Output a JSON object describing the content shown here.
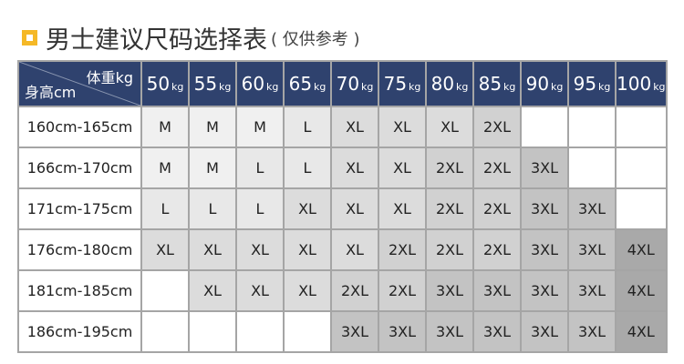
{
  "title": {
    "main": "男士建议尺码选择表",
    "note": "( 仅供参考 )"
  },
  "header": {
    "weight_label": "体重kg",
    "height_label": "身高cm",
    "weights": [
      {
        "n": "50",
        "u": "kg"
      },
      {
        "n": "55",
        "u": "kg"
      },
      {
        "n": "60",
        "u": "kg"
      },
      {
        "n": "65",
        "u": "kg"
      },
      {
        "n": "70",
        "u": "kg"
      },
      {
        "n": "75",
        "u": "kg"
      },
      {
        "n": "80",
        "u": "kg"
      },
      {
        "n": "85",
        "u": "kg"
      },
      {
        "n": "90",
        "u": "kg"
      },
      {
        "n": "95",
        "u": "kg"
      },
      {
        "n": "100",
        "u": "kg"
      }
    ]
  },
  "rows": [
    {
      "height": "160cm-165cm",
      "sizes": [
        "M",
        "M",
        "M",
        "L",
        "XL",
        "XL",
        "XL",
        "2XL",
        "",
        "",
        ""
      ]
    },
    {
      "height": "166cm-170cm",
      "sizes": [
        "M",
        "M",
        "L",
        "L",
        "XL",
        "XL",
        "2XL",
        "2XL",
        "3XL",
        "",
        ""
      ]
    },
    {
      "height": "171cm-175cm",
      "sizes": [
        "L",
        "L",
        "L",
        "XL",
        "XL",
        "XL",
        "2XL",
        "2XL",
        "3XL",
        "3XL",
        ""
      ]
    },
    {
      "height": "176cm-180cm",
      "sizes": [
        "XL",
        "XL",
        "XL",
        "XL",
        "XL",
        "2XL",
        "2XL",
        "2XL",
        "3XL",
        "3XL",
        "4XL"
      ]
    },
    {
      "height": "181cm-185cm",
      "sizes": [
        "",
        "XL",
        "XL",
        "XL",
        "2XL",
        "2XL",
        "3XL",
        "3XL",
        "3XL",
        "3XL",
        "4XL"
      ]
    },
    {
      "height": "186cm-195cm",
      "sizes": [
        "",
        "",
        "",
        "",
        "3XL",
        "3XL",
        "3XL",
        "3XL",
        "3XL",
        "3XL",
        "4XL"
      ]
    }
  ],
  "colors": {
    "header_bg": "#2f426e",
    "accent": "#f5b826",
    "M": "#f0f0f0",
    "L": "#e8e8e8",
    "XL": "#dcdcdc",
    "2XL": "#d1d1d1",
    "3XL": "#c3c3c3",
    "4XL": "#a9a9a9"
  }
}
